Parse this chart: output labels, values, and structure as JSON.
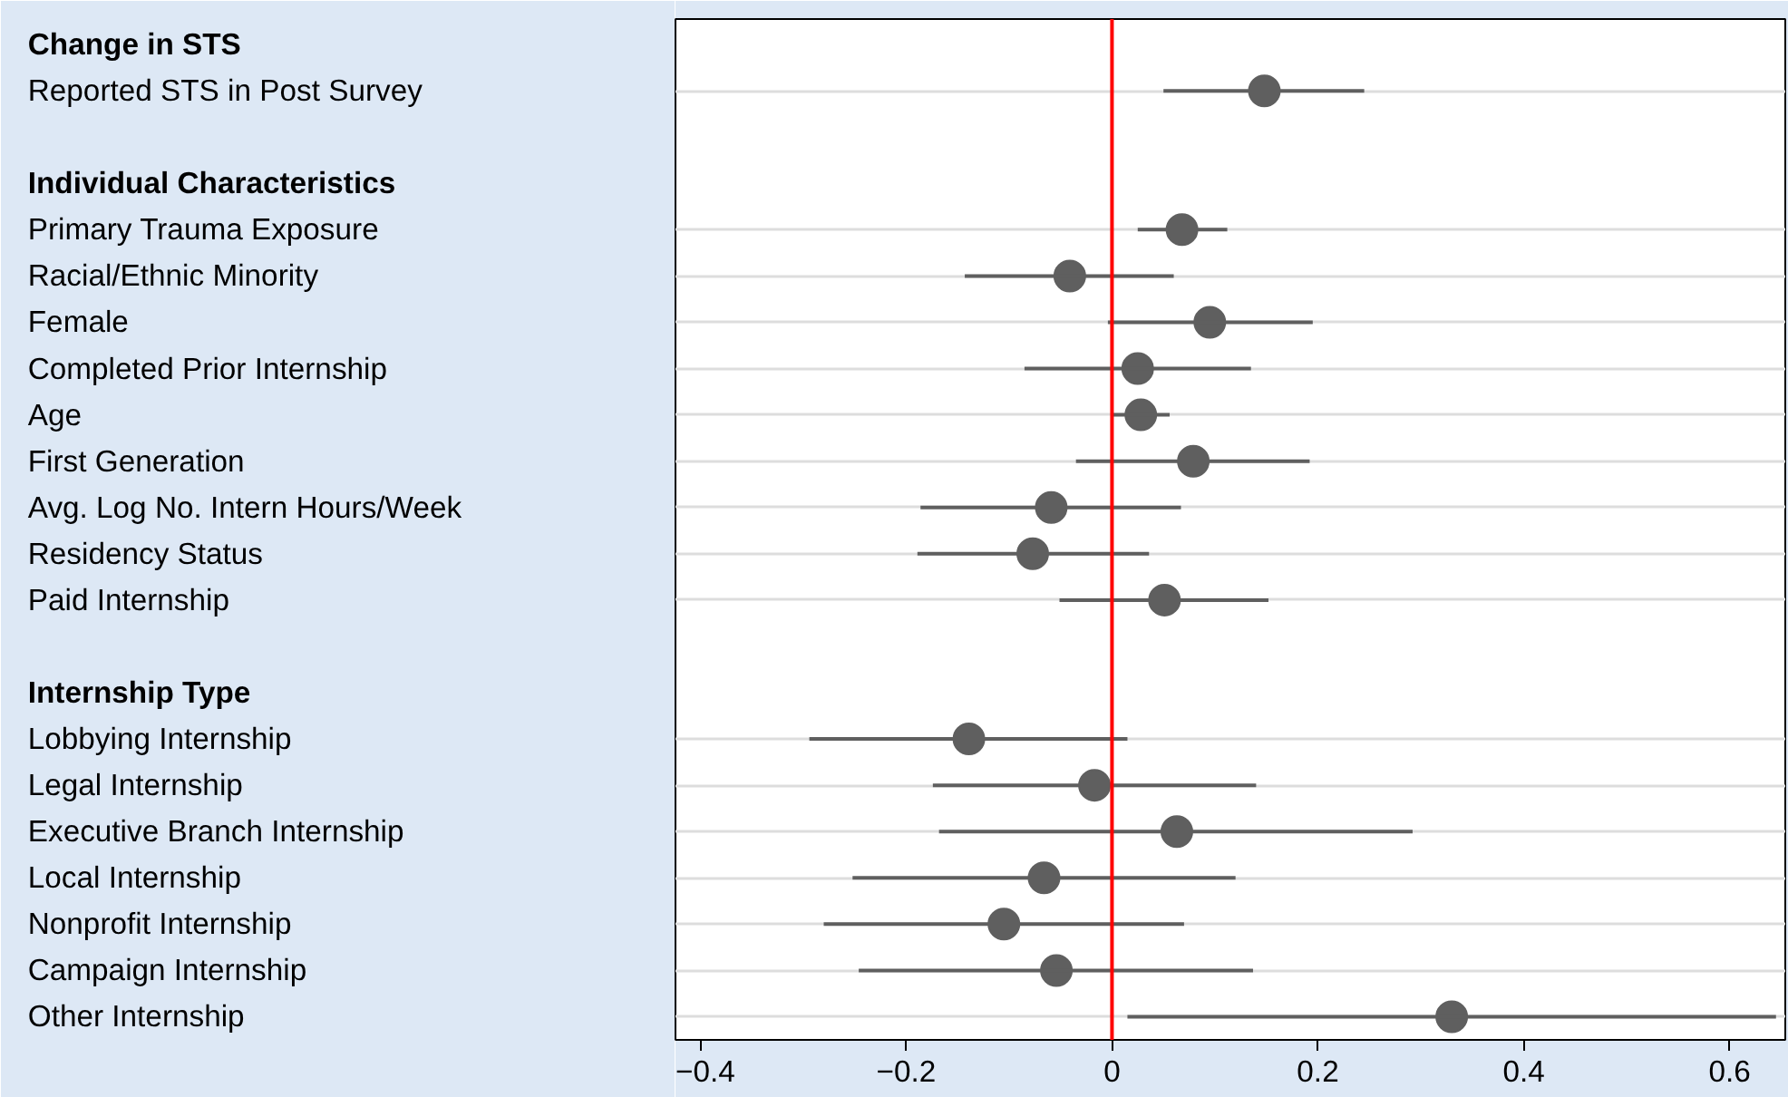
{
  "chart_data": {
    "type": "scatter",
    "orientation": "horizontal",
    "marker": "circle",
    "grid": "y",
    "categories": [
      "Change in STS",
      "Reported STS in Post Survey",
      null,
      "Individual Characteristics",
      "Primary Trauma Exposure",
      "Racial/Ethnic Minority",
      "Female",
      "Completed Prior Internship",
      "Age",
      "First Generation",
      "Avg. Log No. Intern Hours/Week",
      "Residency Status",
      "Paid Internship",
      null,
      "Internship Type",
      "Lobbying Internship",
      "Legal Internship",
      "Executive Branch Internship",
      "Local Internship",
      "Nonprofit Internship",
      "Campaign Internship",
      "Other Internship"
    ],
    "series": [
      {
        "color": "#5f5f5f",
        "values": [
          null,
          0.148,
          null,
          null,
          0.068,
          -0.041,
          0.095,
          0.025,
          0.028,
          0.079,
          -0.059,
          -0.077,
          0.051,
          null,
          null,
          -0.139,
          -0.017,
          0.063,
          -0.066,
          -0.105,
          -0.054,
          0.33
        ],
        "errors": [
          null,
          [
            0.05,
            0.245
          ],
          null,
          null,
          [
            0.025,
            0.112
          ],
          [
            -0.143,
            0.06
          ],
          [
            -0.004,
            0.195
          ],
          [
            -0.085,
            0.135
          ],
          [
            0.001,
            0.056
          ],
          [
            -0.035,
            0.192
          ],
          [
            -0.186,
            0.067
          ],
          [
            -0.189,
            0.036
          ],
          [
            -0.051,
            0.152
          ],
          null,
          null,
          [
            -0.294,
            0.015
          ],
          [
            -0.174,
            0.14
          ],
          [
            -0.168,
            0.292
          ],
          [
            -0.252,
            0.12
          ],
          [
            -0.28,
            0.07
          ],
          [
            -0.246,
            0.137
          ],
          [
            0.015,
            0.645
          ]
        ]
      }
    ],
    "xlim": [
      -0.424,
      0.654
    ],
    "xticks": [
      {
        "value": -0.4,
        "label": "−0.4"
      },
      {
        "value": -0.2,
        "label": "−0.2"
      },
      0,
      0.2,
      0.4,
      0.6
    ],
    "ref_lines": [
      {
        "axis": "x",
        "value": 0,
        "color": "#ff0000"
      }
    ]
  }
}
